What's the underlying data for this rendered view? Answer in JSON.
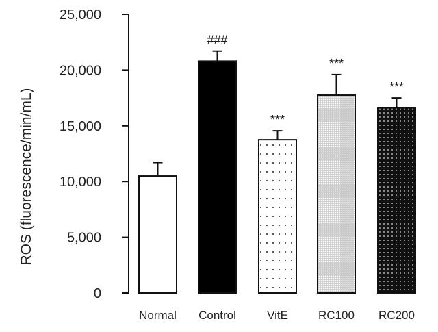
{
  "chart_data": {
    "type": "bar",
    "title": "",
    "xlabel": "",
    "ylabel": "ROS (fluorescence/min/mL)",
    "ylim": [
      0,
      25000
    ],
    "yticks": [
      0,
      5000,
      10000,
      15000,
      20000,
      25000
    ],
    "ytick_labels": [
      "0",
      "5,000",
      "10,000",
      "15,000",
      "20,000",
      "25,000"
    ],
    "grid": false,
    "categories": [
      "Normal",
      "Control",
      "VitE",
      "RC100",
      "RC200"
    ],
    "values": [
      10500,
      20800,
      13750,
      17750,
      16600
    ],
    "error": [
      1200,
      900,
      800,
      1850,
      900
    ],
    "annotations": [
      "",
      "###",
      "***",
      "***",
      "***"
    ],
    "fills": [
      "white",
      "black",
      "sparse-dots",
      "dense-light-dots",
      "black-with-white-dots"
    ]
  }
}
